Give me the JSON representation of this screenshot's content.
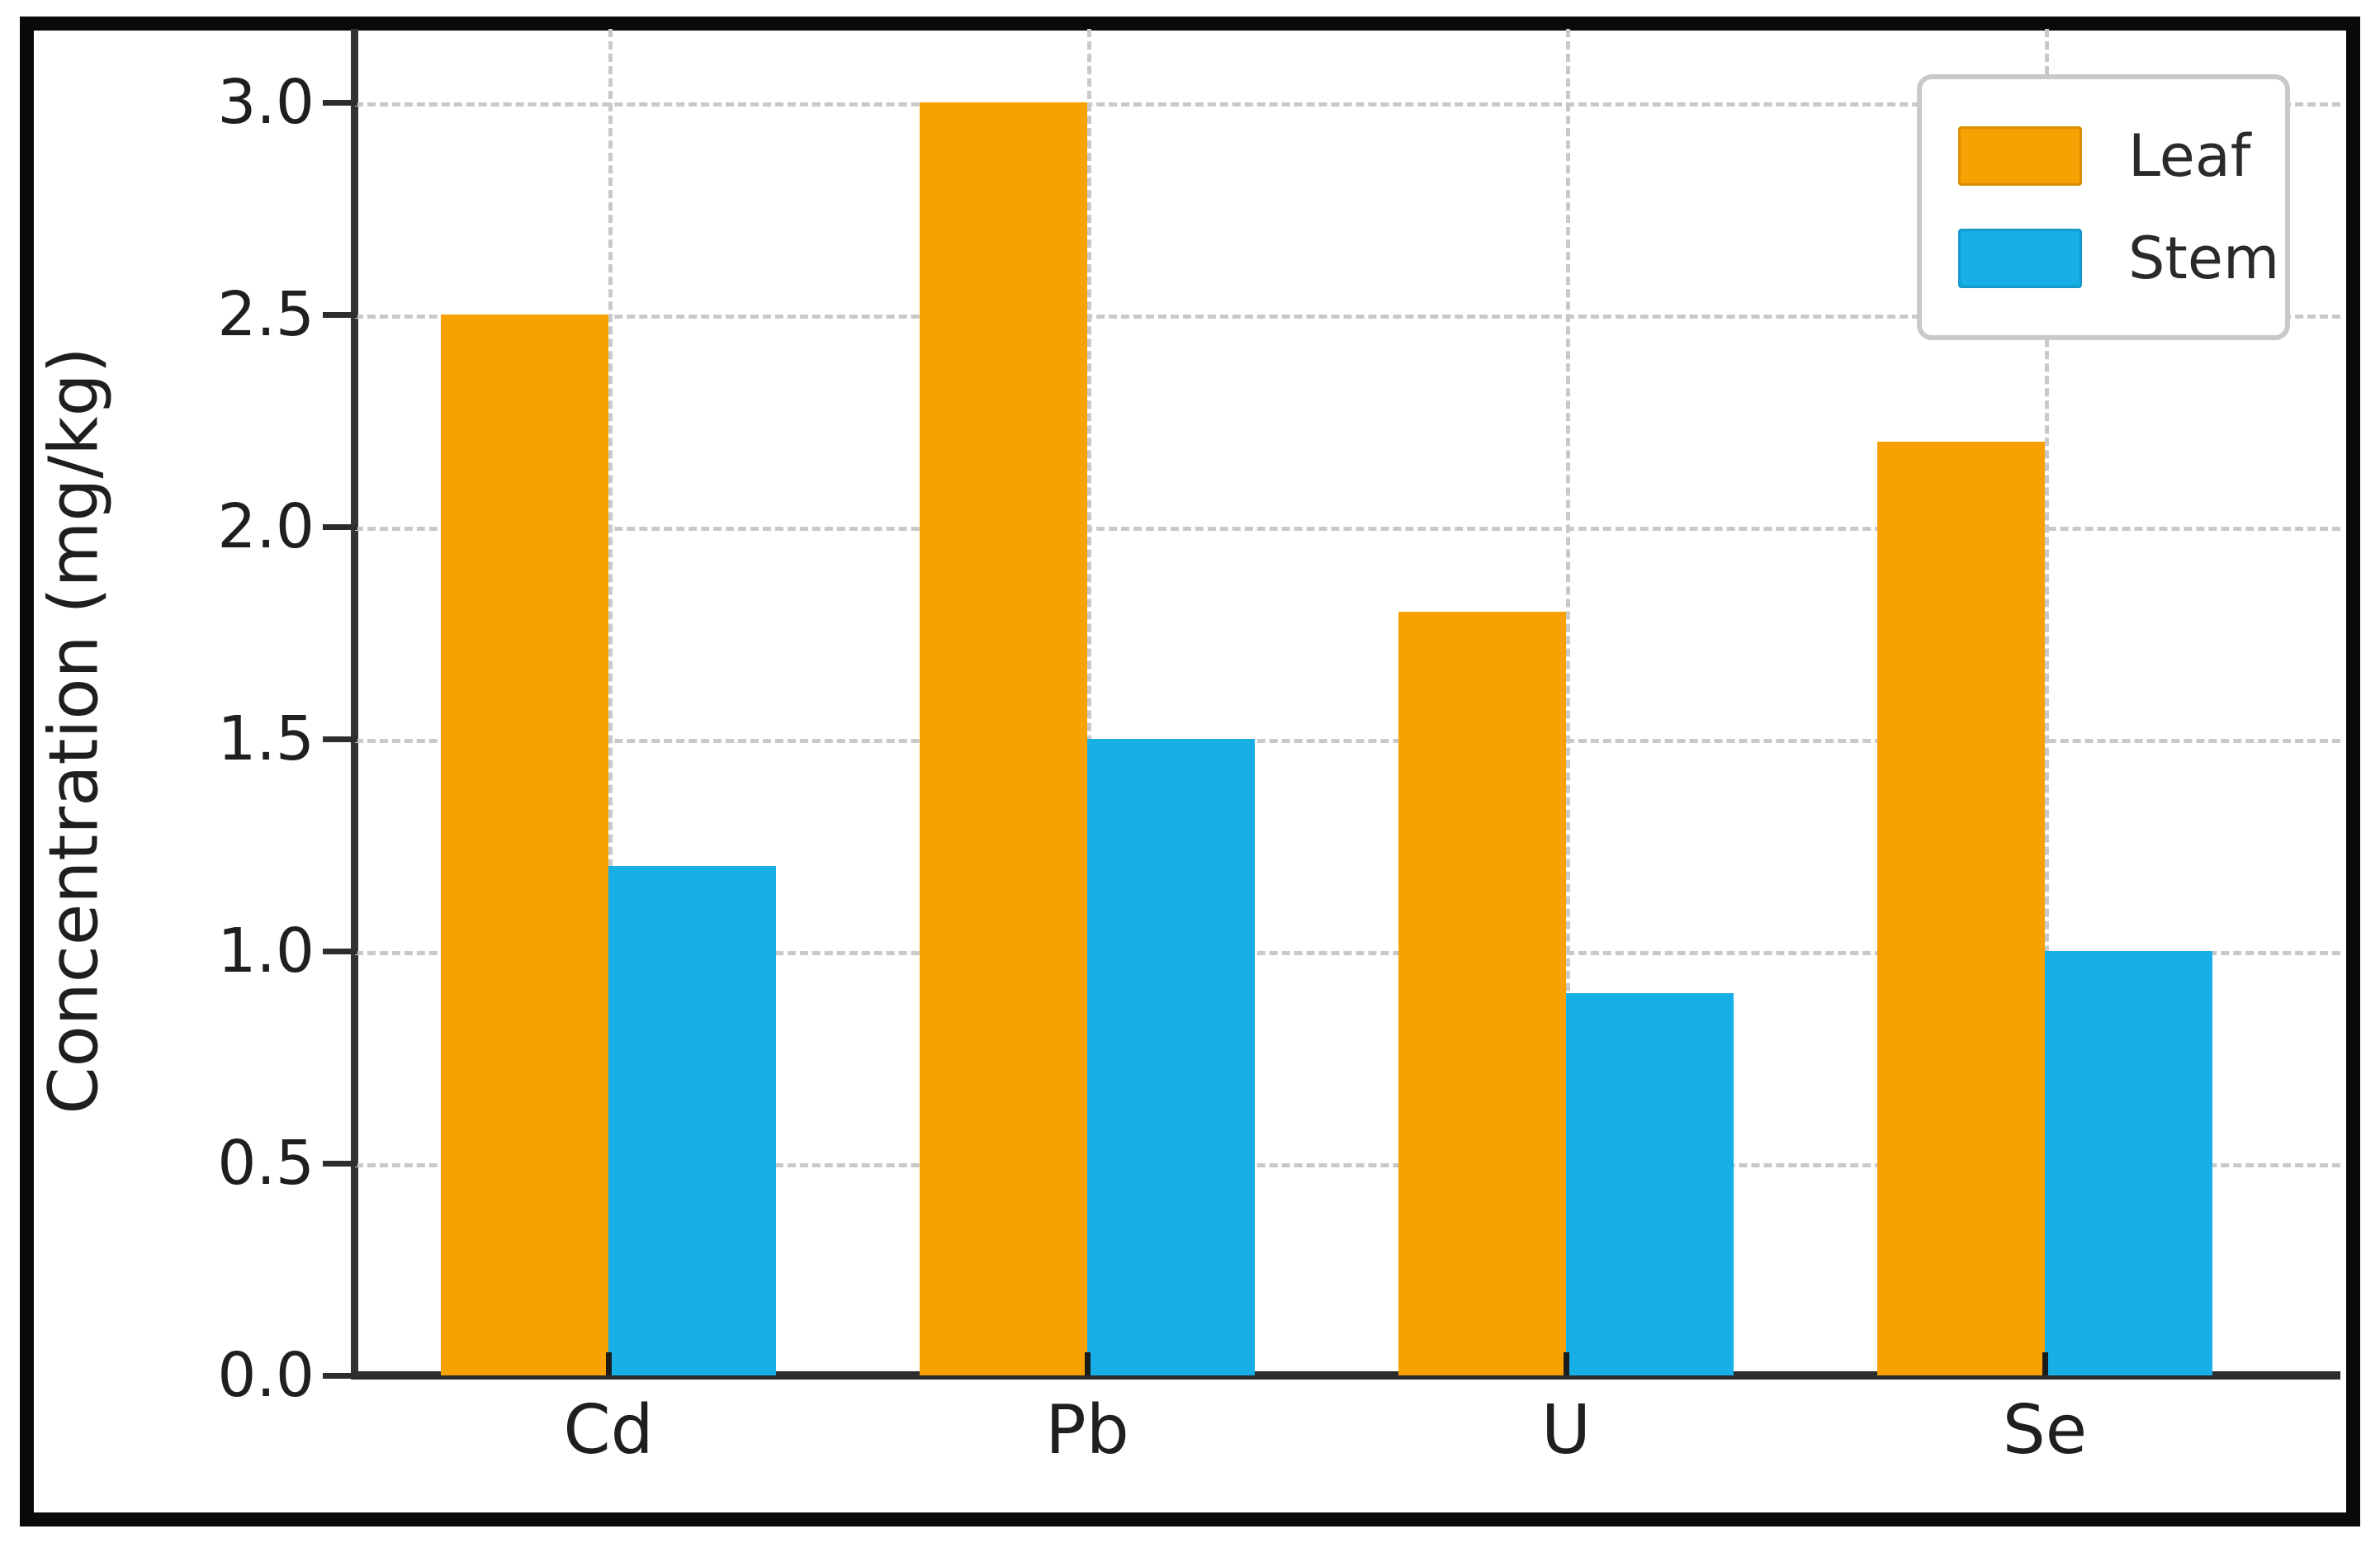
{
  "figure": {
    "background_color": "#ffffff",
    "frame_color": "#0a0a0a",
    "axis_color": "#2d2d2d",
    "grid_color": "#c9c9c9",
    "text_color": "#1f1f1f"
  },
  "chart_data": {
    "type": "bar",
    "title": "",
    "categories": [
      "Cd",
      "Pb",
      "U",
      "Se"
    ],
    "series": [
      {
        "name": "Leaf",
        "color": "#F7A102",
        "values": [
          2.5,
          3.0,
          1.8,
          2.2
        ]
      },
      {
        "name": "Stem",
        "color": "#18AEE6",
        "values": [
          1.2,
          1.5,
          0.9,
          1.0
        ]
      }
    ],
    "xlabel": "",
    "ylabel": "Concentration (mg/kg)",
    "ylim": [
      0,
      3.17
    ],
    "yticks": [
      0.0,
      0.5,
      1.0,
      1.5,
      2.0,
      2.5,
      3.0
    ],
    "ytick_labels": [
      "0.0",
      "0.5",
      "1.0",
      "1.5",
      "2.0",
      "2.5",
      "3.0"
    ],
    "grid": {
      "show": true,
      "axis": "both",
      "style": "dashed"
    },
    "legend": {
      "position": "upper right",
      "entries": [
        "Leaf",
        "Stem"
      ]
    },
    "bar_width_fraction": 0.35
  }
}
